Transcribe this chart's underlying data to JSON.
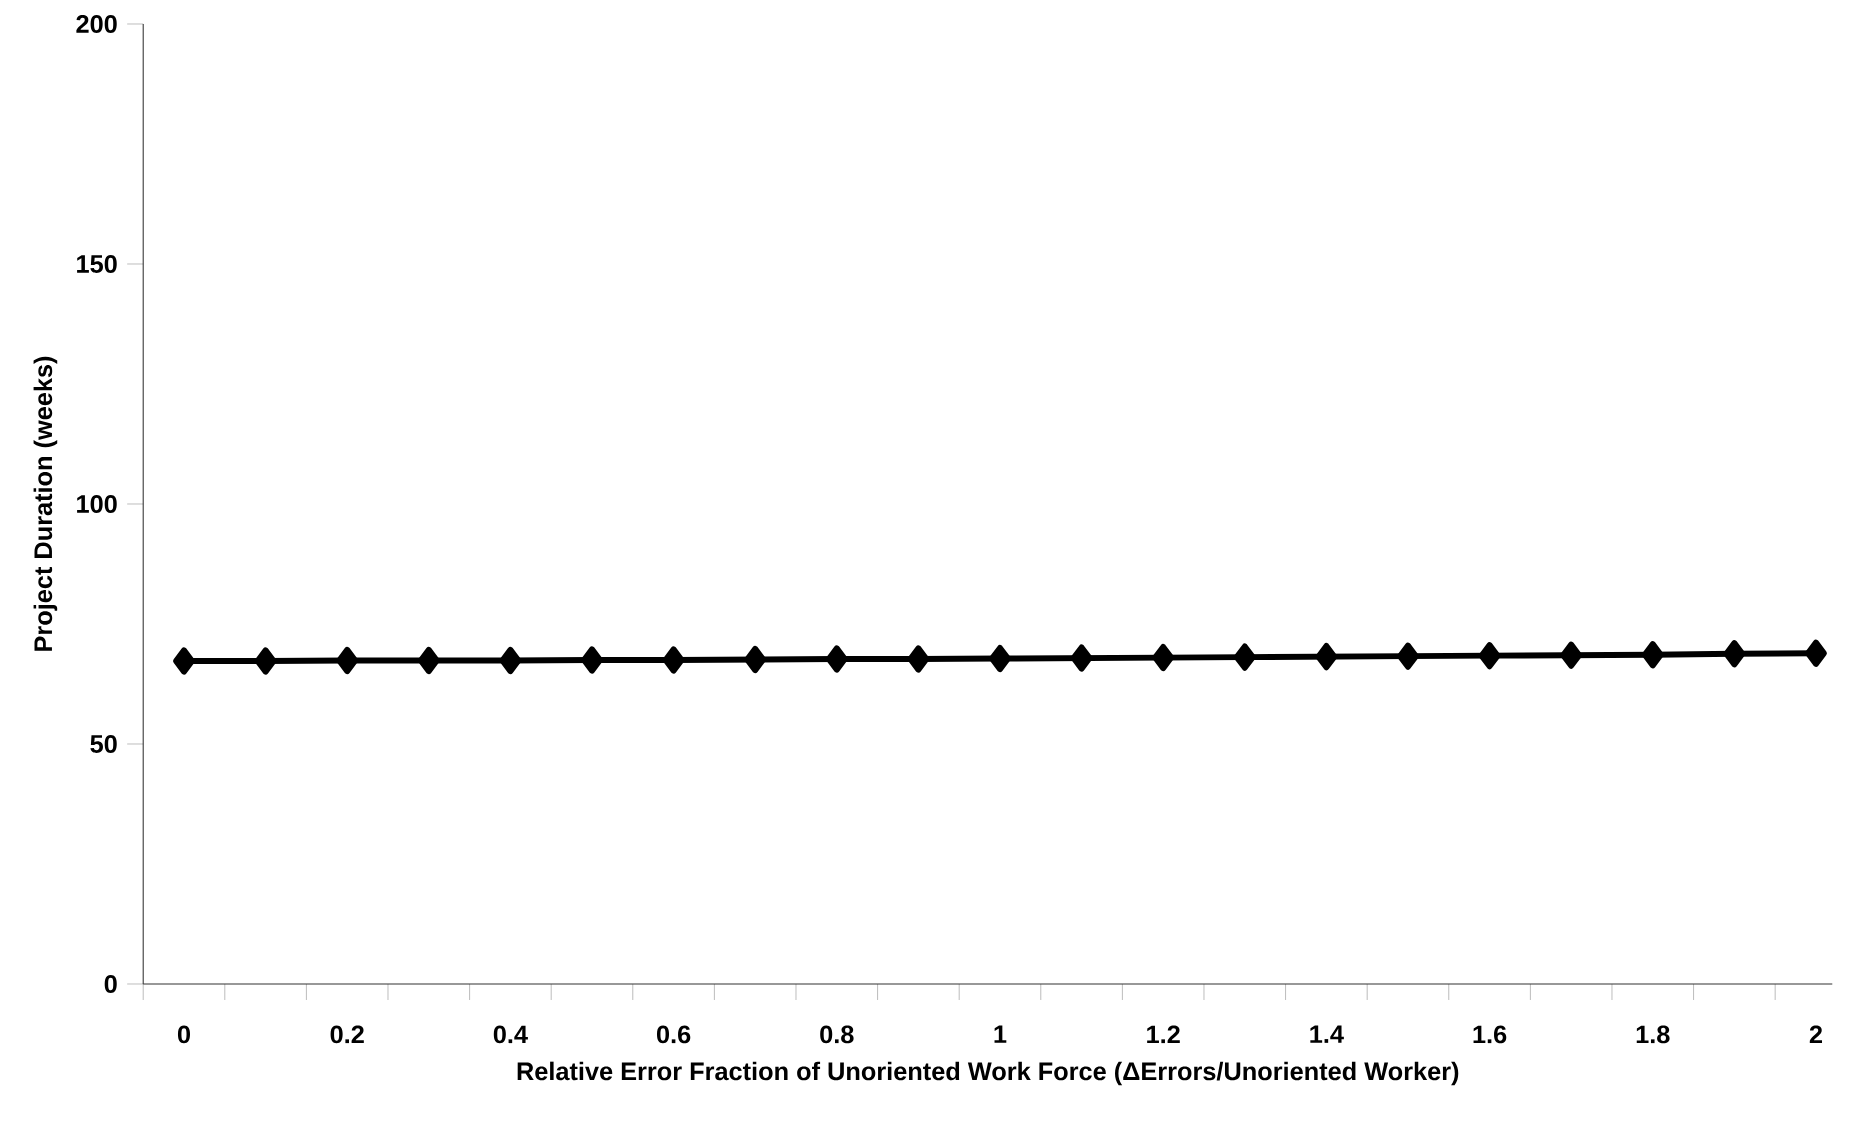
{
  "chart_data": {
    "type": "line",
    "xlabel": "Relative Error Fraction of Unoriented Work Force (ΔErrors/Unoriented Worker)",
    "ylabel": "Project Duration (weeks)",
    "categories": [
      "0",
      null,
      "0.2",
      null,
      "0.4",
      null,
      "0.6",
      null,
      "0.8",
      null,
      "1",
      null,
      "1.2",
      null,
      "1.4",
      null,
      "1.6",
      null,
      "1.8",
      null,
      "2"
    ],
    "values": [
      67.3,
      67.3,
      67.4,
      67.4,
      67.4,
      67.5,
      67.5,
      67.6,
      67.7,
      67.7,
      67.8,
      67.9,
      68.0,
      68.1,
      68.2,
      68.3,
      68.4,
      68.5,
      68.6,
      68.8,
      68.9
    ],
    "color": "#000000",
    "marker": "diamond",
    "ylim": [
      0,
      200
    ],
    "yticks": [
      0,
      50,
      100,
      150,
      200
    ]
  }
}
